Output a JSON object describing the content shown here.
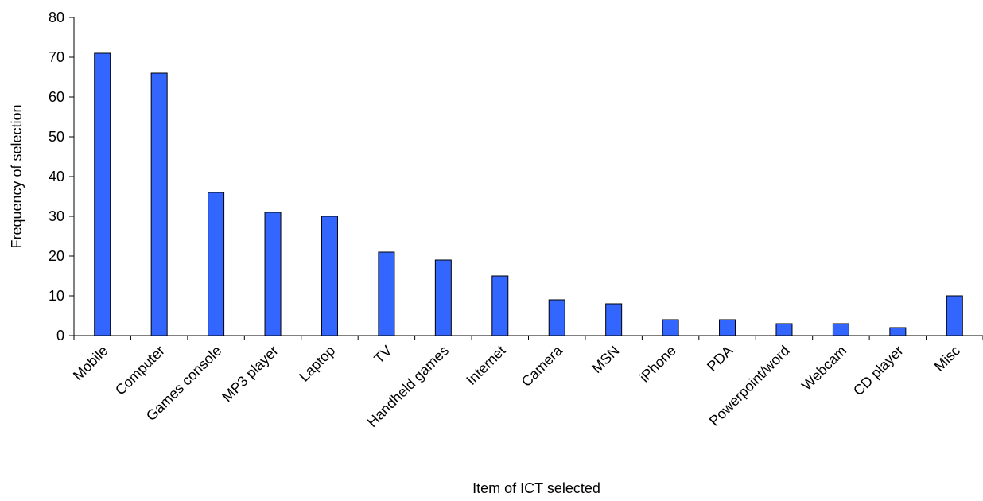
{
  "chart_data": {
    "type": "bar",
    "title": "",
    "xlabel": "Item of ICT selected",
    "ylabel": "Frequency of selection",
    "ylim": [
      0,
      80
    ],
    "yticks": [
      0,
      10,
      20,
      30,
      40,
      50,
      60,
      70,
      80
    ],
    "grid": false,
    "legend": "none",
    "bar_color": "#3366FF",
    "categories": [
      "Mobile",
      "Computer",
      "Games console",
      "MP3 player",
      "Laptop",
      "TV",
      "Handheld games",
      "Internet",
      "Camera",
      "MSN",
      "iPhone",
      "PDA",
      "Powerpoint/word",
      "Webcam",
      "CD player",
      "Misc"
    ],
    "values": [
      71,
      66,
      36,
      31,
      30,
      21,
      19,
      15,
      9,
      8,
      4,
      4,
      3,
      3,
      2,
      10
    ]
  }
}
